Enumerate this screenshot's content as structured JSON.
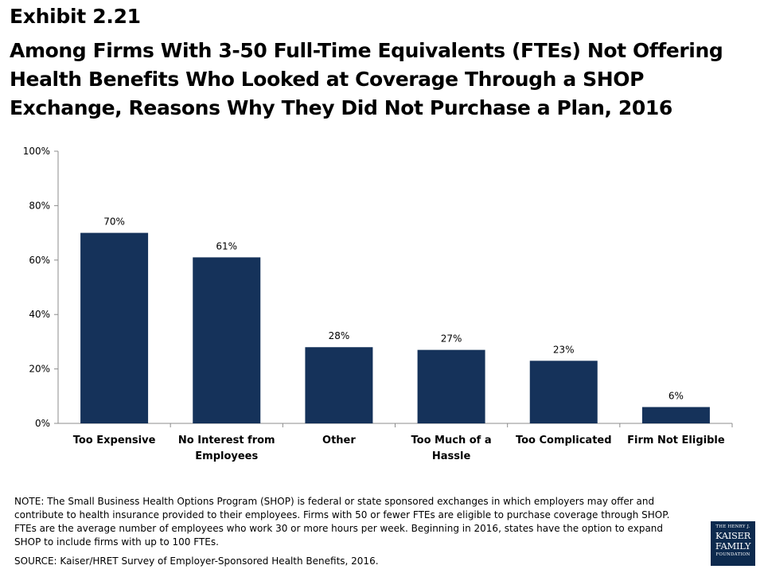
{
  "header": {
    "exhibit": "Exhibit 2.21",
    "title": "Among Firms With 3-50 Full-Time Equivalents (FTEs) Not Offering Health Benefits Who Looked at Coverage Through a SHOP Exchange, Reasons Why They Did Not Purchase a Plan, 2016"
  },
  "chart_data": {
    "type": "bar",
    "title": "",
    "xlabel": "",
    "ylabel": "",
    "ylim": [
      0,
      100
    ],
    "yticks": [
      "0%",
      "20%",
      "40%",
      "60%",
      "80%",
      "100%"
    ],
    "categories": [
      [
        "Too Expensive"
      ],
      [
        "No Interest from",
        "Employees"
      ],
      [
        "Other"
      ],
      [
        "Too Much of a",
        "Hassle"
      ],
      [
        "Too Complicated"
      ],
      [
        "Firm Not Eligible"
      ]
    ],
    "values": [
      70,
      61,
      28,
      27,
      23,
      6
    ],
    "data_labels": [
      "70%",
      "61%",
      "28%",
      "27%",
      "23%",
      "6%"
    ],
    "bar_color": "#15325a",
    "grid": false,
    "legend": "none"
  },
  "footer": {
    "note": "NOTE: The Small Business Health Options Program (SHOP) is federal or state sponsored exchanges in which employers may offer and contribute to health insurance provided to their employees. Firms with 50 or fewer FTEs are eligible to purchase coverage through SHOP. FTEs are the average number of employees who work 30 or more hours per week. Beginning in 2016, states have the option to expand SHOP to include firms with up to 100 FTEs.",
    "source": "SOURCE: Kaiser/HRET Survey of Employer-Sponsored Health Benefits, 2016."
  },
  "logo": {
    "line1": "THE HENRY J.",
    "line2": "KAISER",
    "line3": "FAMILY",
    "line4": "FOUNDATION",
    "color": "#0d2a4e"
  }
}
